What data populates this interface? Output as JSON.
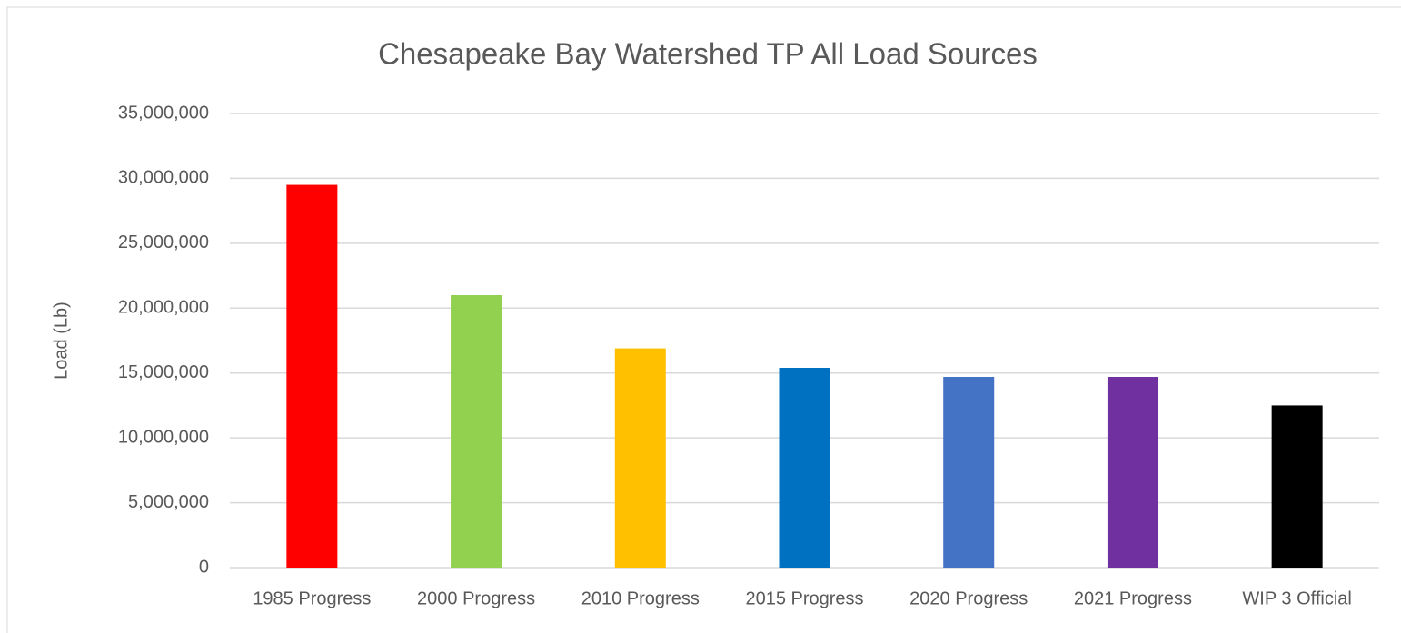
{
  "chart_data": {
    "type": "bar",
    "title": "Chesapeake Bay Watershed TP All Load Sources",
    "y_label": "Load (Lb)",
    "categories": [
      "1985 Progress",
      "2000 Progress",
      "2010 Progress",
      "2015 Progress",
      "2020 Progress",
      "2021 Progress",
      "WIP 3 Official"
    ],
    "values": [
      29500000,
      21000000,
      16900000,
      15400000,
      14700000,
      14700000,
      12500000
    ],
    "colors": [
      "#ff0000",
      "#92d050",
      "#ffc000",
      "#0070c0",
      "#4472c4",
      "#7030a0",
      "#000000"
    ],
    "ylim": [
      0,
      35000000
    ],
    "yticks": [
      0,
      {
        "value": 5000000,
        "label": "5,000,000"
      },
      {
        "value": 10000000,
        "label": "10,000,000"
      },
      {
        "value": 15000000,
        "label": "15,000,000"
      },
      {
        "value": 20000000,
        "label": "20,000,000"
      },
      {
        "value": 25000000,
        "label": "25,000,000"
      },
      {
        "value": 30000000,
        "label": "30,000,000"
      },
      {
        "value": 35000000,
        "label": "35,000,000"
      }
    ],
    "grid": true
  }
}
